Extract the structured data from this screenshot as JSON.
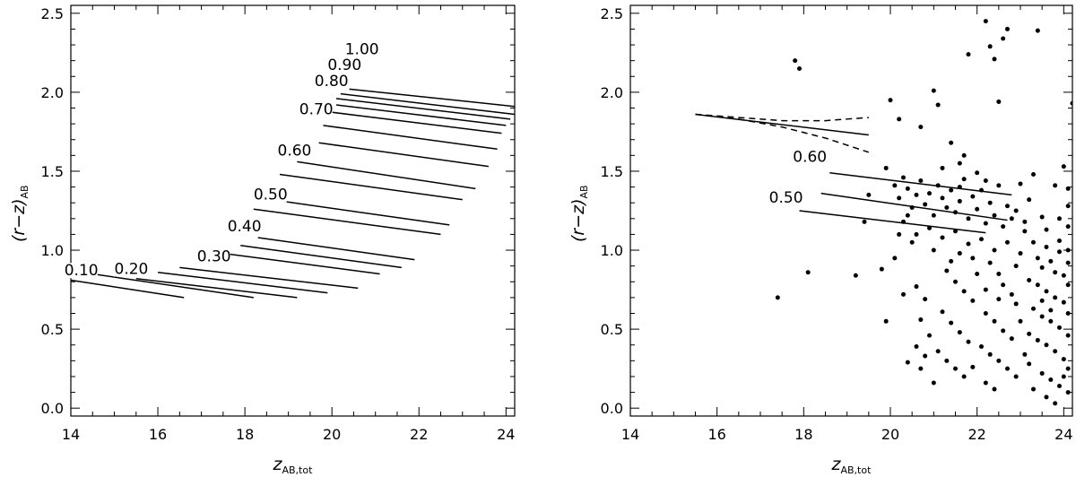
{
  "chart_data": [
    {
      "type": "line",
      "xlabel_main": "z",
      "xlabel_sub": "AB,tot",
      "ylabel_main": "(r−z)",
      "ylabel_sub": "AB",
      "xlim": [
        14,
        24.2
      ],
      "ylim": [
        -0.05,
        2.55
      ],
      "xticks": [
        "14",
        "16",
        "18",
        "20",
        "22",
        "24"
      ],
      "yticks": [
        "0.0",
        "0.5",
        "1.0",
        "1.5",
        "2.0",
        "2.5"
      ],
      "grid": false,
      "series": [
        {
          "name": "0.10",
          "x": [
            14.0,
            16.6
          ],
          "y": [
            0.81,
            0.7
          ]
        },
        {
          "name": "0.20",
          "x": [
            14.0,
            18.2
          ],
          "y": [
            0.87,
            0.7
          ]
        },
        {
          "name": "",
          "x": [
            15.5,
            19.2
          ],
          "y": [
            0.82,
            0.7
          ]
        },
        {
          "name": "0.30",
          "x": [
            16.0,
            19.9
          ],
          "y": [
            0.86,
            0.73
          ]
        },
        {
          "name": "",
          "x": [
            16.5,
            20.6
          ],
          "y": [
            0.89,
            0.76
          ]
        },
        {
          "name": "0.40",
          "x": [
            17.5,
            21.1
          ],
          "y": [
            0.98,
            0.85
          ]
        },
        {
          "name": "",
          "x": [
            17.9,
            21.6
          ],
          "y": [
            1.03,
            0.89
          ]
        },
        {
          "name": "",
          "x": [
            18.3,
            21.9
          ],
          "y": [
            1.08,
            0.94
          ]
        },
        {
          "name": "0.50",
          "x": [
            18.2,
            22.5
          ],
          "y": [
            1.26,
            1.1
          ]
        },
        {
          "name": "",
          "x": [
            18.6,
            22.7
          ],
          "y": [
            1.32,
            1.16
          ]
        },
        {
          "name": "0.60",
          "x": [
            18.8,
            23.0
          ],
          "y": [
            1.48,
            1.32
          ]
        },
        {
          "name": "",
          "x": [
            19.2,
            23.3
          ],
          "y": [
            1.56,
            1.39
          ]
        },
        {
          "name": "0.70",
          "x": [
            19.7,
            23.6
          ],
          "y": [
            1.68,
            1.53
          ]
        },
        {
          "name": "",
          "x": [
            19.8,
            23.8
          ],
          "y": [
            1.79,
            1.64
          ]
        },
        {
          "name": "0.80",
          "x": [
            19.8,
            23.9
          ],
          "y": [
            1.88,
            1.74
          ]
        },
        {
          "name": "",
          "x": [
            20.1,
            24.0
          ],
          "y": [
            1.92,
            1.79
          ]
        },
        {
          "name": "0.90",
          "x": [
            20.1,
            24.1
          ],
          "y": [
            1.96,
            1.83
          ]
        },
        {
          "name": "",
          "x": [
            20.2,
            24.2
          ],
          "y": [
            1.99,
            1.86
          ]
        },
        {
          "name": "1.00",
          "x": [
            20.4,
            24.2
          ],
          "y": [
            2.02,
            1.91
          ]
        }
      ],
      "labels": [
        {
          "text": "0.10",
          "x": 13.85,
          "y": 0.84
        },
        {
          "text": "0.20",
          "x": 15.0,
          "y": 0.85
        },
        {
          "text": "0.30",
          "x": 16.9,
          "y": 0.93
        },
        {
          "text": "0.40",
          "x": 17.6,
          "y": 1.12
        },
        {
          "text": "0.50",
          "x": 18.2,
          "y": 1.32
        },
        {
          "text": "0.60",
          "x": 18.75,
          "y": 1.6
        },
        {
          "text": "0.70",
          "x": 19.25,
          "y": 1.86
        },
        {
          "text": "0.80",
          "x": 19.6,
          "y": 2.04
        },
        {
          "text": "0.90",
          "x": 19.9,
          "y": 2.14
        },
        {
          "text": "1.00",
          "x": 20.3,
          "y": 2.24
        }
      ]
    },
    {
      "type": "scatter",
      "xlabel_main": "z",
      "xlabel_sub": "AB,tot",
      "ylabel_main": "(r−z)",
      "ylabel_sub": "AB",
      "xlim": [
        14,
        24.2
      ],
      "ylim": [
        -0.05,
        2.55
      ],
      "xticks": [
        "14",
        "16",
        "18",
        "20",
        "22",
        "24"
      ],
      "yticks": [
        "0.0",
        "0.5",
        "1.0",
        "1.5",
        "2.0",
        "2.5"
      ],
      "grid": false,
      "lines": [
        {
          "name": "",
          "style": "solid",
          "x": [
            15.5,
            19.5
          ],
          "y": [
            1.86,
            1.73
          ]
        },
        {
          "name": "",
          "style": "dashed",
          "x": [
            15.5,
            16.5,
            17.5,
            18.5,
            19.5
          ],
          "y": [
            1.86,
            1.84,
            1.82,
            1.82,
            1.84
          ]
        },
        {
          "name": "",
          "style": "dashed",
          "x": [
            15.5,
            16.5,
            17.5,
            18.5,
            19.5
          ],
          "y": [
            1.86,
            1.83,
            1.78,
            1.71,
            1.62
          ]
        },
        {
          "name": "0.60",
          "style": "solid",
          "x": [
            18.6,
            22.8
          ],
          "y": [
            1.49,
            1.35
          ]
        },
        {
          "name": "",
          "style": "solid",
          "x": [
            18.4,
            22.7
          ],
          "y": [
            1.36,
            1.19
          ]
        },
        {
          "name": "0.50",
          "style": "solid",
          "x": [
            17.9,
            22.2
          ],
          "y": [
            1.25,
            1.11
          ]
        }
      ],
      "labels": [
        {
          "text": "0.60",
          "x": 17.75,
          "y": 1.56
        },
        {
          "text": "0.50",
          "x": 17.2,
          "y": 1.3
        }
      ],
      "points": [
        [
          17.4,
          0.7
        ],
        [
          18.1,
          0.86
        ],
        [
          17.8,
          2.2
        ],
        [
          17.9,
          2.15
        ],
        [
          19.2,
          0.84
        ],
        [
          19.4,
          1.18
        ],
        [
          19.5,
          1.35
        ],
        [
          19.8,
          0.88
        ],
        [
          19.9,
          1.52
        ],
        [
          20.0,
          1.95
        ],
        [
          20.2,
          1.83
        ],
        [
          20.4,
          0.29
        ],
        [
          20.7,
          1.78
        ],
        [
          21.0,
          2.01
        ],
        [
          21.1,
          1.92
        ],
        [
          21.4,
          1.68
        ],
        [
          21.6,
          1.55
        ],
        [
          21.8,
          2.24
        ],
        [
          22.2,
          2.45
        ],
        [
          22.3,
          2.29
        ],
        [
          22.4,
          2.21
        ],
        [
          22.5,
          1.94
        ],
        [
          22.6,
          2.34
        ],
        [
          22.7,
          2.4
        ],
        [
          23.4,
          2.39
        ],
        [
          24.2,
          1.93
        ],
        [
          21.2,
          1.52
        ],
        [
          21.7,
          1.6
        ],
        [
          22.0,
          1.49
        ],
        [
          22.2,
          1.44
        ],
        [
          23.2,
          1.32
        ],
        [
          23.5,
          1.21
        ],
        [
          23.8,
          1.41
        ],
        [
          24.0,
          1.53
        ],
        [
          24.1,
          1.28
        ],
        [
          24.1,
          1.39
        ],
        [
          20.1,
          1.41
        ],
        [
          20.2,
          1.33
        ],
        [
          20.3,
          1.46
        ],
        [
          20.4,
          1.39
        ],
        [
          20.5,
          1.27
        ],
        [
          20.6,
          1.35
        ],
        [
          20.7,
          1.44
        ],
        [
          20.8,
          1.29
        ],
        [
          20.9,
          1.36
        ],
        [
          21.0,
          1.22
        ],
        [
          21.1,
          1.41
        ],
        [
          21.2,
          1.33
        ],
        [
          21.3,
          1.27
        ],
        [
          21.4,
          1.38
        ],
        [
          21.5,
          1.24
        ],
        [
          21.6,
          1.31
        ],
        [
          21.7,
          1.45
        ],
        [
          21.8,
          1.2
        ],
        [
          21.9,
          1.34
        ],
        [
          22.0,
          1.26
        ],
        [
          22.1,
          1.38
        ],
        [
          22.2,
          1.17
        ],
        [
          22.3,
          1.3
        ],
        [
          22.4,
          1.22
        ],
        [
          22.5,
          1.41
        ],
        [
          22.6,
          1.15
        ],
        [
          22.7,
          1.28
        ],
        [
          22.8,
          1.2
        ],
        [
          20.3,
          1.18
        ],
        [
          20.6,
          1.1
        ],
        [
          20.9,
          1.14
        ],
        [
          21.2,
          1.08
        ],
        [
          21.5,
          1.12
        ],
        [
          21.8,
          1.04
        ],
        [
          22.1,
          1.07
        ],
        [
          22.4,
          1.0
        ],
        [
          22.7,
          1.05
        ],
        [
          23.0,
          0.98
        ],
        [
          23.1,
          1.12
        ],
        [
          23.3,
          1.05
        ],
        [
          23.4,
          0.95
        ],
        [
          23.5,
          0.89
        ],
        [
          23.6,
          1.02
        ],
        [
          23.7,
          0.93
        ],
        [
          23.8,
          0.86
        ],
        [
          23.9,
          0.99
        ],
        [
          24.0,
          0.84
        ],
        [
          24.1,
          0.92
        ],
        [
          23.2,
          0.81
        ],
        [
          23.4,
          0.78
        ],
        [
          23.6,
          0.74
        ],
        [
          23.8,
          0.7
        ],
        [
          24.0,
          0.67
        ],
        [
          24.1,
          0.6
        ],
        [
          23.3,
          0.63
        ],
        [
          23.5,
          0.58
        ],
        [
          23.7,
          0.55
        ],
        [
          23.9,
          0.51
        ],
        [
          24.1,
          0.46
        ],
        [
          23.4,
          0.43
        ],
        [
          23.6,
          0.4
        ],
        [
          23.8,
          0.36
        ],
        [
          24.0,
          0.31
        ],
        [
          24.1,
          0.25
        ],
        [
          23.2,
          0.28
        ],
        [
          23.5,
          0.22
        ],
        [
          23.7,
          0.18
        ],
        [
          23.9,
          0.14
        ],
        [
          24.1,
          0.1
        ],
        [
          23.3,
          0.12
        ],
        [
          23.6,
          0.07
        ],
        [
          23.8,
          0.03
        ],
        [
          22.3,
          0.92
        ],
        [
          22.5,
          0.85
        ],
        [
          22.6,
          0.78
        ],
        [
          22.8,
          0.72
        ],
        [
          22.9,
          0.66
        ],
        [
          22.2,
          0.6
        ],
        [
          22.4,
          0.55
        ],
        [
          22.6,
          0.49
        ],
        [
          22.8,
          0.44
        ],
        [
          22.1,
          0.39
        ],
        [
          22.3,
          0.34
        ],
        [
          22.5,
          0.3
        ],
        [
          22.7,
          0.25
        ],
        [
          22.9,
          0.2
        ],
        [
          22.2,
          0.16
        ],
        [
          22.4,
          0.12
        ],
        [
          21.3,
          0.87
        ],
        [
          21.5,
          0.8
        ],
        [
          21.7,
          0.74
        ],
        [
          21.9,
          0.68
        ],
        [
          21.2,
          0.61
        ],
        [
          21.4,
          0.54
        ],
        [
          21.6,
          0.48
        ],
        [
          21.8,
          0.42
        ],
        [
          21.1,
          0.36
        ],
        [
          21.3,
          0.3
        ],
        [
          21.5,
          0.25
        ],
        [
          21.7,
          0.2
        ],
        [
          21.0,
          0.16
        ],
        [
          20.6,
          0.77
        ],
        [
          20.8,
          0.69
        ],
        [
          20.7,
          0.56
        ],
        [
          20.9,
          0.46
        ],
        [
          20.6,
          0.39
        ],
        [
          20.8,
          0.33
        ],
        [
          20.7,
          0.25
        ],
        [
          19.9,
          0.55
        ],
        [
          20.1,
          0.95
        ],
        [
          20.3,
          0.72
        ],
        [
          22.9,
          1.25
        ],
        [
          23.1,
          1.18
        ],
        [
          23.3,
          1.48
        ],
        [
          23.6,
          1.13
        ],
        [
          23.9,
          1.06
        ],
        [
          24.1,
          1.0
        ],
        [
          21.9,
          0.95
        ],
        [
          21.6,
          0.98
        ],
        [
          22.9,
          0.9
        ],
        [
          23.0,
          0.55
        ],
        [
          23.2,
          0.47
        ],
        [
          22.5,
          0.69
        ],
        [
          21.9,
          0.26
        ],
        [
          23.1,
          0.34
        ],
        [
          24.0,
          0.2
        ],
        [
          20.4,
          1.22
        ],
        [
          20.5,
          1.05
        ],
        [
          20.2,
          1.1
        ],
        [
          21.0,
          1.0
        ],
        [
          21.4,
          0.93
        ],
        [
          22.0,
          0.85
        ],
        [
          22.2,
          0.75
        ],
        [
          23.5,
          0.68
        ],
        [
          23.7,
          0.62
        ],
        [
          24.1,
          0.78
        ],
        [
          24.1,
          1.15
        ],
        [
          23.9,
          1.2
        ],
        [
          23.0,
          1.42
        ],
        [
          21.6,
          1.4
        ]
      ]
    }
  ]
}
